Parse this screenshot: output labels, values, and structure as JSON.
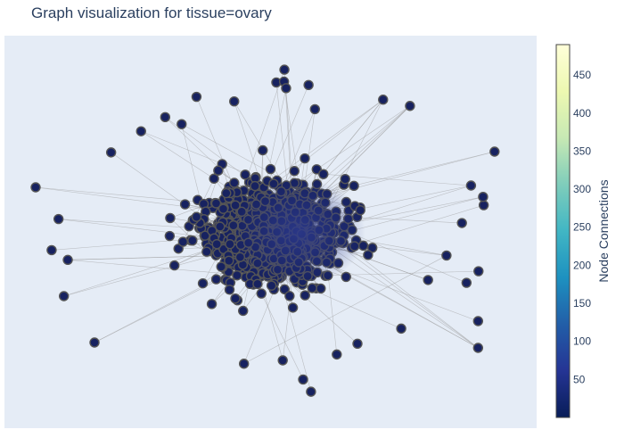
{
  "title": "Graph visualization for tissue=ovary",
  "colorbar": {
    "title": "Node Connections",
    "ticks": [
      50,
      100,
      150,
      200,
      250,
      300,
      350,
      400,
      450
    ],
    "range": [
      0,
      490
    ]
  },
  "chart_data": {
    "type": "scatter",
    "title": "Graph visualization for tissue=ovary",
    "xlabel": "",
    "ylabel": "",
    "description_values": {
      "node_color": "#172260",
      "edge_color": "#999999",
      "plot_background": "#e5ecf6"
    },
    "grid": false,
    "legend": "none",
    "colorbar_label": "Node Connections",
    "colorscale": "YlGnBu (reversed)",
    "color_range": [
      0,
      490
    ],
    "node_count_estimate": 1000,
    "outlier_nodes_sample": [
      {
        "x": -1.0,
        "y": 0.25
      },
      {
        "x": 0.95,
        "y": 0.45
      },
      {
        "x": 0.85,
        "y": 0.26
      },
      {
        "x": 0.88,
        "y": -0.5
      },
      {
        "x": -0.88,
        "y": -0.36
      },
      {
        "x": 0.88,
        "y": -0.65
      },
      {
        "x": 0.05,
        "y": -0.72
      },
      {
        "x": -0.75,
        "y": -0.62
      }
    ]
  }
}
